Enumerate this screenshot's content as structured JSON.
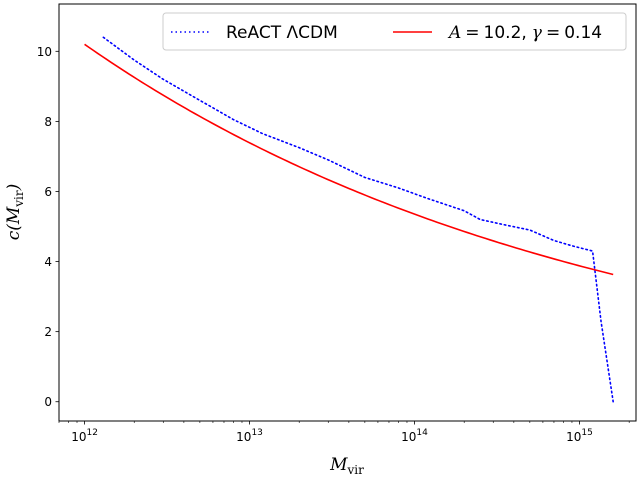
{
  "chart_data": {
    "type": "line",
    "xscale": "log",
    "xlim": [
      700000000000.0,
      2200000000000000.0
    ],
    "ylim": [
      -0.55,
      11.35
    ],
    "x_ticks": [
      {
        "value": 1000000000000.0,
        "base": "10",
        "exp": "12"
      },
      {
        "value": 10000000000000.0,
        "base": "10",
        "exp": "13"
      },
      {
        "value": 100000000000000.0,
        "base": "10",
        "exp": "14"
      },
      {
        "value": 1000000000000000.0,
        "base": "10",
        "exp": "15"
      }
    ],
    "y_ticks": [
      0,
      2,
      4,
      6,
      8,
      10
    ],
    "xlabel": {
      "main": "M",
      "sub": "vir"
    },
    "ylabel": {
      "pre": "c(M",
      "sub": "vir",
      "post": ")"
    },
    "legend_position": "top-right",
    "grid": false,
    "series": [
      {
        "name": "ReACT ΛCDM",
        "color": "#0000ff",
        "style": "dotted",
        "x": [
          1300000000000.0,
          2000000000000.0,
          3000000000000.0,
          5000000000000.0,
          8000000000000.0,
          12000000000000.0,
          20000000000000.0,
          30000000000000.0,
          50000000000000.0,
          80000000000000.0,
          120000000000000.0,
          200000000000000.0,
          250000000000000.0,
          350000000000000.0,
          500000000000000.0,
          700000000000000.0,
          900000000000000.0,
          1200000000000000.0,
          1350000000000000.0,
          1600000000000000.0
        ],
        "y": [
          10.4,
          9.75,
          9.2,
          8.6,
          8.05,
          7.65,
          7.25,
          6.9,
          6.4,
          6.1,
          5.8,
          5.45,
          5.2,
          5.05,
          4.9,
          4.6,
          4.45,
          4.3,
          2.3,
          0.0
        ]
      },
      {
        "name_parts": {
          "a": "A",
          "a_val": "10.2",
          "g": "γ",
          "g_val": "0.14"
        },
        "color": "#ff0000",
        "style": "solid",
        "A": 10.2,
        "gamma": 0.14,
        "x0": 1000000000000.0,
        "xmin": 1000000000000.0,
        "xmax": 1600000000000000.0
      }
    ]
  }
}
